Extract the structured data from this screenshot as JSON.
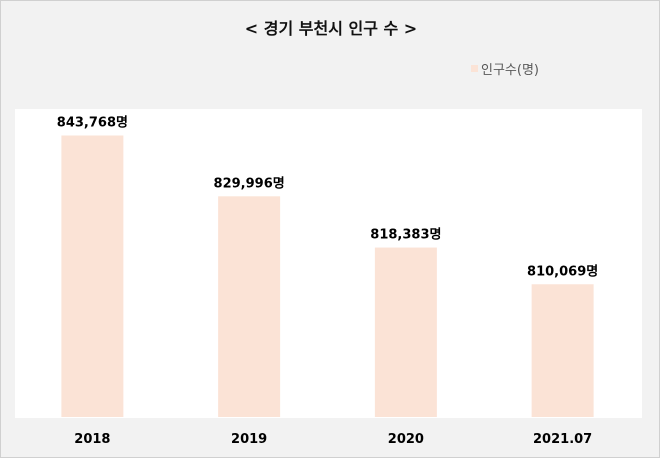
{
  "chart_data": {
    "type": "bar",
    "title": "< 경기 부천시 인구 수 >",
    "categories": [
      "2018",
      "2019",
      "2020",
      "2021.07"
    ],
    "series": [
      {
        "name": "인구수(명)",
        "values": [
          843768,
          829996,
          818383,
          810069
        ],
        "labels": [
          "843,768명",
          "829,996명",
          "818,383명",
          "810,069명"
        ],
        "color": "#fbe3d6"
      }
    ],
    "ylim": [
      780000,
      850000
    ],
    "grid": false,
    "legend_position": "top-right"
  }
}
